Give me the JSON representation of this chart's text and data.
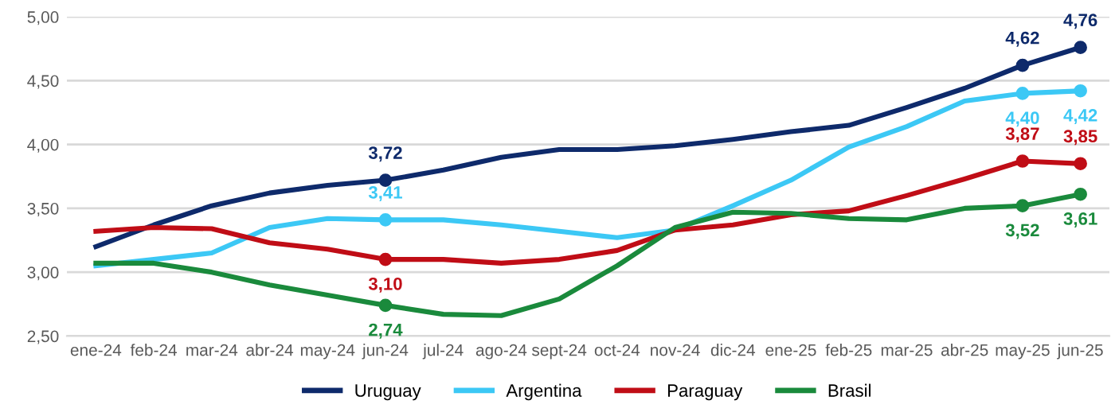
{
  "chart_data": {
    "type": "line",
    "categories": [
      "ene-24",
      "feb-24",
      "mar-24",
      "abr-24",
      "may-24",
      "jun-24",
      "jul-24",
      "ago-24",
      "sept-24",
      "oct-24",
      "nov-24",
      "dic-24",
      "ene-25",
      "feb-25",
      "mar-25",
      "abr-25",
      "may-25",
      "jun-25"
    ],
    "series": [
      {
        "name": "Uruguay",
        "color": "#0e2a6b",
        "values": [
          3.2,
          3.37,
          3.52,
          3.62,
          3.68,
          3.72,
          3.8,
          3.9,
          3.96,
          3.96,
          3.99,
          4.04,
          4.1,
          4.15,
          4.29,
          4.44,
          4.62,
          4.76
        ],
        "value_labels": [
          null,
          null,
          null,
          null,
          null,
          "3,72",
          null,
          null,
          null,
          null,
          null,
          null,
          null,
          null,
          null,
          null,
          "4,62",
          "4,76"
        ]
      },
      {
        "name": "Argentina",
        "color": "#3cc8f5",
        "values": [
          3.05,
          3.1,
          3.15,
          3.35,
          3.42,
          3.41,
          3.41,
          3.37,
          3.32,
          3.27,
          3.33,
          3.52,
          3.72,
          3.98,
          4.14,
          4.34,
          4.4,
          4.42
        ],
        "value_labels": [
          null,
          null,
          null,
          null,
          null,
          "3,41",
          null,
          null,
          null,
          null,
          null,
          null,
          null,
          null,
          null,
          null,
          "4,40",
          "4,42"
        ]
      },
      {
        "name": "Paraguay",
        "color": "#c00d16",
        "values": [
          3.32,
          3.35,
          3.34,
          3.23,
          3.18,
          3.1,
          3.1,
          3.07,
          3.1,
          3.17,
          3.33,
          3.37,
          3.45,
          3.48,
          3.6,
          3.73,
          3.87,
          3.85
        ],
        "value_labels": [
          null,
          null,
          null,
          null,
          null,
          "3,10",
          null,
          null,
          null,
          null,
          null,
          null,
          null,
          null,
          null,
          null,
          "3,87",
          "3,85"
        ]
      },
      {
        "name": "Brasil",
        "color": "#1a8a3c",
        "values": [
          3.07,
          3.07,
          3.0,
          2.9,
          2.82,
          2.74,
          2.67,
          2.66,
          2.79,
          3.05,
          3.35,
          3.47,
          3.46,
          3.42,
          3.41,
          3.5,
          3.52,
          3.61
        ],
        "value_labels": [
          null,
          null,
          null,
          null,
          null,
          "2,74",
          null,
          null,
          null,
          null,
          null,
          null,
          null,
          null,
          null,
          null,
          "3,52",
          "3,61"
        ]
      }
    ],
    "ylim": [
      2.5,
      5.0
    ],
    "yticks": [
      {
        "value": 2.5,
        "label": "2,50"
      },
      {
        "value": 3.0,
        "label": "3,00"
      },
      {
        "value": 3.5,
        "label": "3,50"
      },
      {
        "value": 4.0,
        "label": "4,00"
      },
      {
        "value": 4.5,
        "label": "4,50"
      },
      {
        "value": 5.0,
        "label": "5,00"
      }
    ],
    "grid": "y",
    "legend": "bottom",
    "line_style": "solid"
  }
}
